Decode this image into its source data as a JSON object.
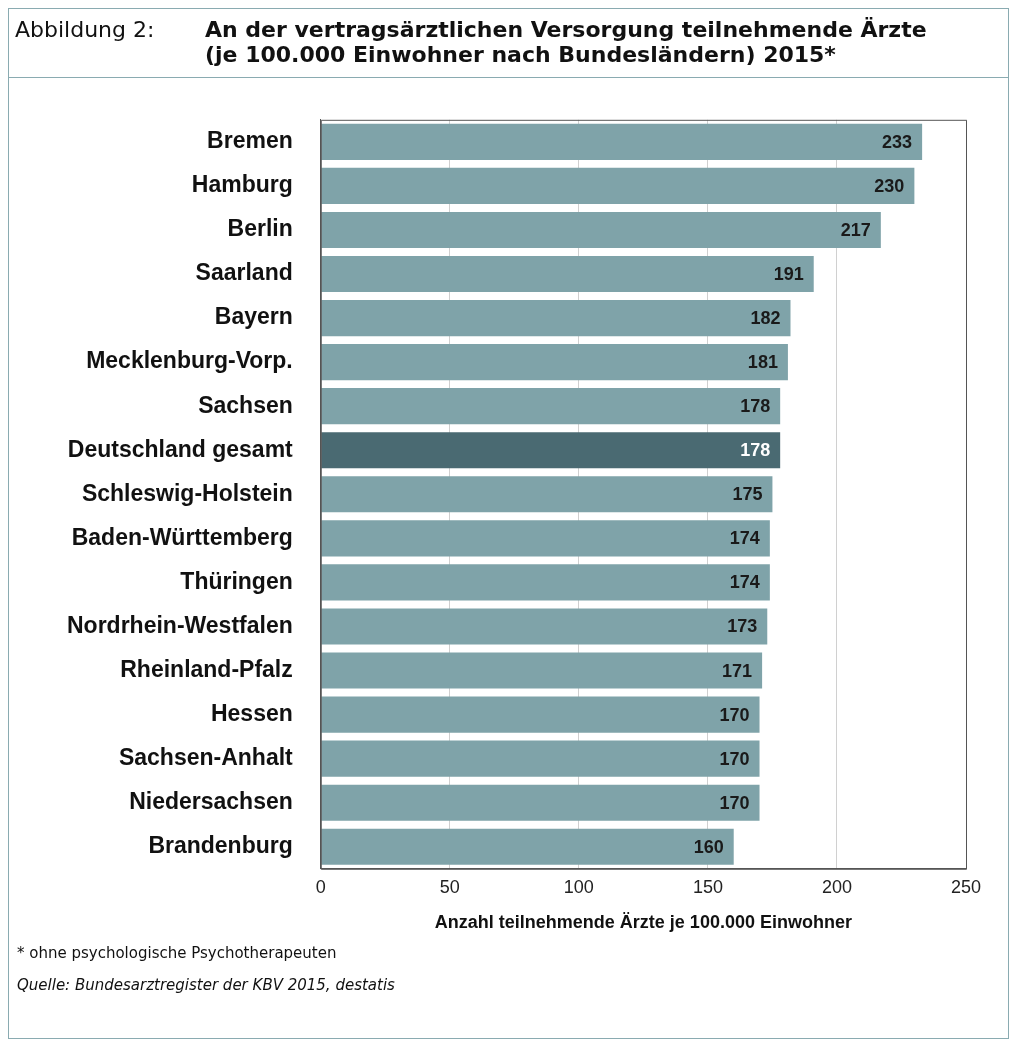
{
  "chart_data": {
    "type": "bar",
    "orientation": "horizontal",
    "subtitle": "Abbildung 2:",
    "title": "An der vertragsärztlichen Versorgung teilnehmende Ärzte\n(je 100.000 Einwohner nach Bundesländern) 2015*",
    "categories": [
      "Bremen",
      "Hamburg",
      "Berlin",
      "Saarland",
      "Bayern",
      "Mecklenburg-Vorp.",
      "Sachsen",
      "Deutschland gesamt",
      "Schleswig-Holstein",
      "Baden-Württemberg",
      "Thüringen",
      "Nordrhein-Westfalen",
      "Rheinland-Pfalz",
      "Hessen",
      "Sachsen-Anhalt",
      "Niedersachsen",
      "Brandenburg"
    ],
    "values": [
      233,
      230,
      217,
      191,
      182,
      181,
      178,
      178,
      175,
      174,
      174,
      173,
      171,
      170,
      170,
      170,
      160
    ],
    "colors": [
      "#7fa3a9",
      "#7fa3a9",
      "#7fa3a9",
      "#7fa3a9",
      "#7fa3a9",
      "#7fa3a9",
      "#7fa3a9",
      "#4a6a72",
      "#7fa3a9",
      "#7fa3a9",
      "#7fa3a9",
      "#7fa3a9",
      "#7fa3a9",
      "#7fa3a9",
      "#7fa3a9",
      "#7fa3a9",
      "#7fa3a9"
    ],
    "xlim": [
      0,
      250
    ],
    "xticks": [
      0,
      50,
      100,
      150,
      200,
      250
    ],
    "grid": "x",
    "data_labels": true,
    "legend": false,
    "xlabel": "Anzahl teilnehmende Ärzte je 100.000 Einwohner",
    "annotations": [
      "* ohne psychologische Psychotherapeuten",
      "Quelle: Bundesarztregister der KBV 2015, destatis"
    ]
  }
}
